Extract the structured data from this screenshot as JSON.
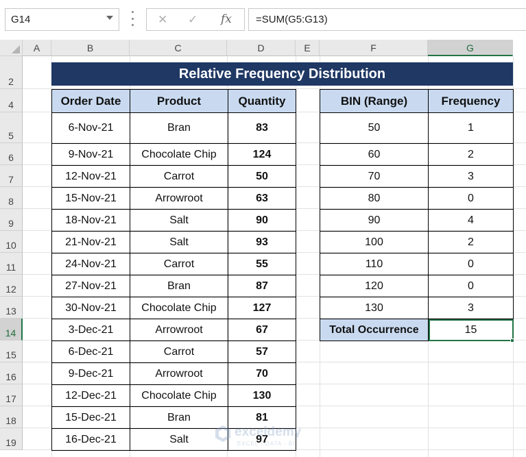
{
  "formula_bar": {
    "name_box": "G14",
    "cancel_icon": "✕",
    "enter_icon": "✓",
    "fx_label": "fx",
    "formula": "=SUM(G5:G13)"
  },
  "columns": [
    "A",
    "B",
    "C",
    "D",
    "E",
    "F",
    "G"
  ],
  "selected_column": "G",
  "rows": [
    "2",
    "4",
    "5",
    "6",
    "7",
    "8",
    "9",
    "10",
    "11",
    "12",
    "13",
    "14",
    "15",
    "16",
    "17",
    "18",
    "19"
  ],
  "selected_row": "14",
  "title": "Relative Frequency Distribution",
  "orders_table": {
    "headers": [
      "Order Date",
      "Product",
      "Quantity"
    ],
    "rows": [
      [
        "6-Nov-21",
        "Bran",
        "83"
      ],
      [
        "9-Nov-21",
        "Chocolate Chip",
        "124"
      ],
      [
        "12-Nov-21",
        "Carrot",
        "50"
      ],
      [
        "15-Nov-21",
        "Arrowroot",
        "63"
      ],
      [
        "18-Nov-21",
        "Salt",
        "90"
      ],
      [
        "21-Nov-21",
        "Salt",
        "93"
      ],
      [
        "24-Nov-21",
        "Carrot",
        "55"
      ],
      [
        "27-Nov-21",
        "Bran",
        "87"
      ],
      [
        "30-Nov-21",
        "Chocolate Chip",
        "127"
      ],
      [
        "3-Dec-21",
        "Arrowroot",
        "67"
      ],
      [
        "6-Dec-21",
        "Carrot",
        "57"
      ],
      [
        "9-Dec-21",
        "Arrowroot",
        "70"
      ],
      [
        "12-Dec-21",
        "Chocolate Chip",
        "130"
      ],
      [
        "15-Dec-21",
        "Bran",
        "81"
      ],
      [
        "16-Dec-21",
        "Salt",
        "97"
      ]
    ]
  },
  "frequency_table": {
    "headers": [
      "BIN (Range)",
      "Frequency"
    ],
    "rows": [
      [
        "50",
        "1"
      ],
      [
        "60",
        "2"
      ],
      [
        "70",
        "3"
      ],
      [
        "80",
        "0"
      ],
      [
        "90",
        "4"
      ],
      [
        "100",
        "2"
      ],
      [
        "110",
        "0"
      ],
      [
        "120",
        "0"
      ],
      [
        "130",
        "3"
      ]
    ],
    "total_label": "Total Occurrence",
    "total_value": "15"
  },
  "watermark": {
    "name": "exceldemy",
    "tagline": "EXCEL · DATA · BI"
  },
  "colors": {
    "title_bg": "#1f3864",
    "header_bg": "#c9daf0",
    "selection": "#217346"
  }
}
